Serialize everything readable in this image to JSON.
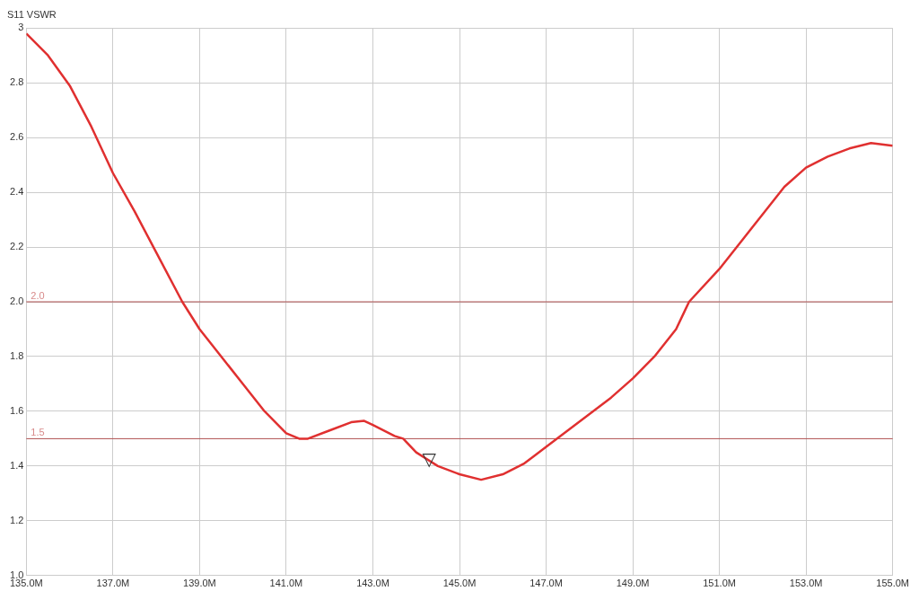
{
  "chart_data": {
    "type": "line",
    "title": "S11 VSWR",
    "xlim": [
      135,
      155
    ],
    "xticks": [
      {
        "value": 135,
        "label": "135.0M"
      },
      {
        "value": 137,
        "label": "137.0M"
      },
      {
        "value": 139,
        "label": "139.0M"
      },
      {
        "value": 141,
        "label": "141.0M"
      },
      {
        "value": 143,
        "label": "143.0M"
      },
      {
        "value": 145,
        "label": "145.0M"
      },
      {
        "value": 147,
        "label": "147.0M"
      },
      {
        "value": 149,
        "label": "149.0M"
      },
      {
        "value": 151,
        "label": "151.0M"
      },
      {
        "value": 153,
        "label": "153.0M"
      },
      {
        "value": 155,
        "label": "155.0M"
      }
    ],
    "ylim": [
      1,
      3
    ],
    "yticks": [
      {
        "value": 1,
        "label": "1.0"
      },
      1.2,
      1.4,
      1.6,
      1.8,
      {
        "value": 2,
        "label": "2.0"
      },
      2.2,
      2.4,
      2.6,
      2.8,
      3
    ],
    "grid": true,
    "legend": false,
    "marker": "none",
    "line_style": "solid",
    "x": [
      135,
      135.5,
      136,
      136.5,
      137,
      137.5,
      138,
      138.6,
      139,
      139.5,
      140,
      140.5,
      141,
      141.3,
      141.5,
      142,
      142.5,
      142.8,
      143,
      143.5,
      143.7,
      144,
      144.5,
      145,
      145.5,
      146,
      146.5,
      147,
      147.5,
      148,
      148.5,
      149,
      149.5,
      150,
      150.3,
      151,
      151.5,
      152,
      152.5,
      153,
      153.5,
      154,
      154.5,
      155
    ],
    "series": [
      {
        "color": "#e03030",
        "values": [
          2.98,
          2.9,
          2.79,
          2.64,
          2.47,
          2.33,
          2.18,
          2.0,
          1.9,
          1.8,
          1.7,
          1.6,
          1.52,
          1.5,
          1.5,
          1.53,
          1.56,
          1.565,
          1.55,
          1.51,
          1.5,
          1.45,
          1.4,
          1.37,
          1.35,
          1.37,
          1.41,
          1.47,
          1.53,
          1.59,
          1.65,
          1.72,
          1.8,
          1.9,
          2.0,
          2.12,
          2.22,
          2.32,
          2.42,
          2.49,
          2.53,
          2.56,
          2.58,
          2.57
        ]
      }
    ],
    "ref_lines": [
      {
        "axis": "y",
        "value": 2,
        "label": "2.0",
        "color": "#b05050"
      },
      {
        "axis": "y",
        "value": 1.5,
        "label": "1.5",
        "color": "#b05050"
      }
    ],
    "annotations": [
      {
        "text": "▽",
        "x": 144.3,
        "y": 1.42
      }
    ]
  }
}
